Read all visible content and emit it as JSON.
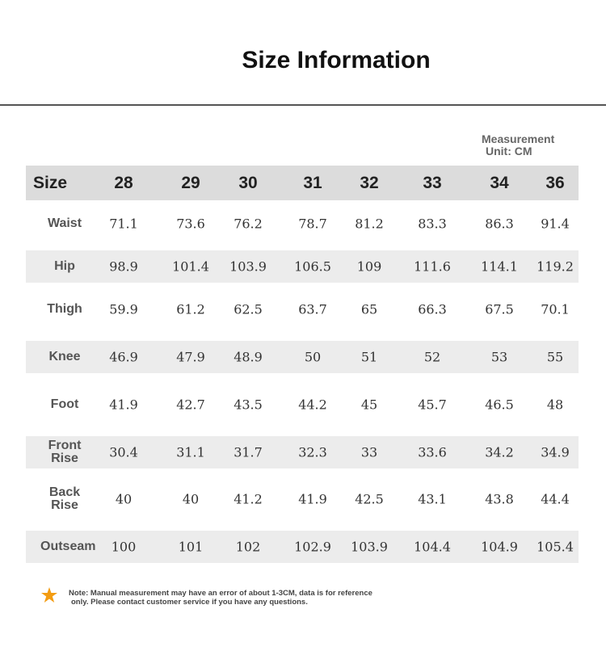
{
  "header": {
    "title": "Size Information"
  },
  "unit": [
    "Measurement",
    "Unit: CM"
  ],
  "table": {
    "columns": [
      "Size",
      "28",
      "29",
      "30",
      "31",
      "32",
      "33",
      "34",
      "36"
    ],
    "rows": [
      [
        "Waist",
        "71.1",
        "73.6",
        "76.2",
        "78.7",
        "81.2",
        "83.3",
        "86.3",
        "91.4"
      ],
      [
        "Hip",
        "98.9",
        "101.4",
        "103.9",
        "106.5",
        "109",
        "111.6",
        "114.1",
        "119.2"
      ],
      [
        "Thigh",
        "59.9",
        "61.2",
        "62.5",
        "63.7",
        "65",
        "66.3",
        "67.5",
        "70.1"
      ],
      [
        "Knee",
        "46.9",
        "47.9",
        "48.9",
        "50",
        "51",
        "52",
        "53",
        "55"
      ],
      [
        "Foot",
        "41.9",
        "42.7",
        "43.5",
        "44.2",
        "45",
        "45.7",
        "46.5",
        "48"
      ],
      [
        "Front Rise",
        "30.4",
        "31.1",
        "31.7",
        "32.3",
        "33",
        "33.6",
        "34.2",
        "34.9"
      ],
      [
        "Back Rise",
        "40",
        "40",
        "41.2",
        "41.9",
        "42.5",
        "43.1",
        "43.8",
        "44.4"
      ],
      [
        "Outseam",
        "100",
        "101",
        "102",
        "102.9",
        "103.9",
        "104.4",
        "104.9",
        "105.4"
      ]
    ]
  },
  "note": [
    "Note: Manual measurement may have an error of about 1-3CM, data is for reference",
    "only. Please contact customer service if you have any questions."
  ]
}
